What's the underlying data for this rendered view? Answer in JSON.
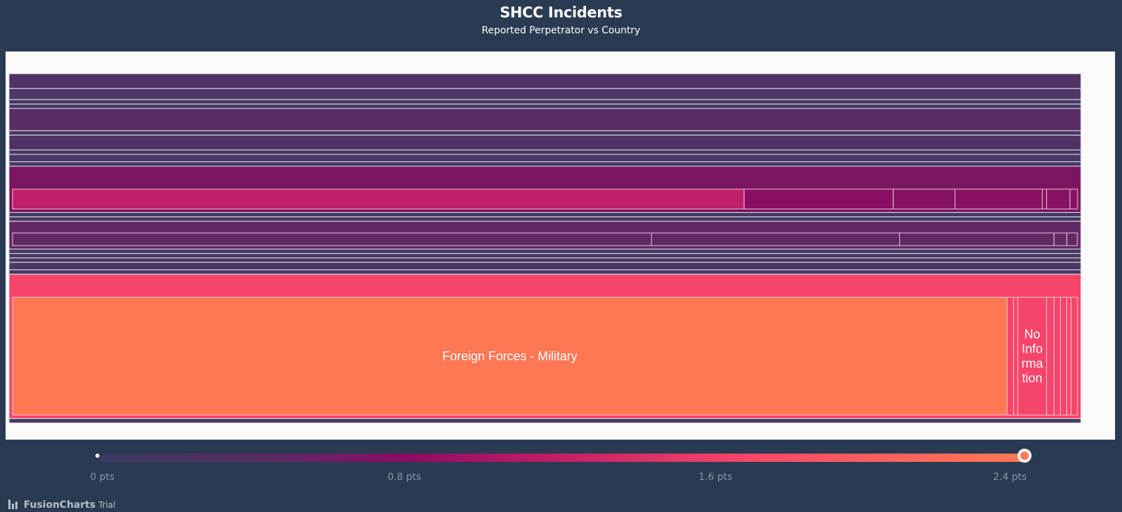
{
  "title": "SHCC Incidents",
  "subtitle": "Reported Perpetrator vs Country",
  "colors": {
    "background": "#2a3a52",
    "plot_background": "#fafafa",
    "gradient": [
      "#3c3b63",
      "#5d2a66",
      "#8a0b63",
      "#c41f65",
      "#f5476a",
      "#ff7a52"
    ]
  },
  "chart_data": {
    "type": "treemap",
    "value_unit": "pts",
    "color_range": [
      0,
      2.4
    ],
    "legend": {
      "ticks": [
        "0 pts",
        "0.8 pts",
        "1.6 pts",
        "2.4 pts"
      ],
      "placement": "bottom"
    },
    "groups": [
      {
        "share": 0.04,
        "color": "#513266",
        "children": []
      },
      {
        "share": 0.03,
        "color": "#4d3766",
        "children": []
      },
      {
        "share": 0.012,
        "color": "#463a63",
        "children": []
      },
      {
        "share": 0.012,
        "color": "#463a63",
        "children": []
      },
      {
        "share": 0.06,
        "color": "#5a2c66",
        "children": []
      },
      {
        "share": 0.012,
        "color": "#463a63",
        "children": []
      },
      {
        "share": 0.04,
        "color": "#513266",
        "children": []
      },
      {
        "share": 0.012,
        "color": "#463a63",
        "children": []
      },
      {
        "share": 0.02,
        "color": "#483864",
        "children": []
      },
      {
        "share": 0.012,
        "color": "#463a63",
        "children": []
      },
      {
        "share": 0.125,
        "color": "#7a1560",
        "children": [
          {
            "label": "",
            "share": 0.687,
            "color": "#bf1f66"
          },
          {
            "label": "",
            "share": 0.14,
            "color": "#8a0c63"
          },
          {
            "label": "",
            "share": 0.058,
            "color": "#861062"
          },
          {
            "label": "",
            "share": 0.082,
            "color": "#881061"
          },
          {
            "label": "",
            "share": 0.004,
            "color": "#861062"
          },
          {
            "label": "",
            "share": 0.022,
            "color": "#861062"
          },
          {
            "label": "",
            "share": 0.007,
            "color": "#861062"
          }
        ]
      },
      {
        "share": 0.012,
        "color": "#463a63",
        "children": []
      },
      {
        "share": 0.012,
        "color": "#463a63",
        "children": []
      },
      {
        "share": 0.075,
        "color": "#622866",
        "children": [
          {
            "label": "",
            "share": 0.6,
            "color": "#622866"
          },
          {
            "label": "",
            "share": 0.233,
            "color": "#622866"
          },
          {
            "label": "",
            "share": 0.145,
            "color": "#622866"
          },
          {
            "label": "",
            "share": 0.012,
            "color": "#622866"
          },
          {
            "label": "",
            "share": 0.01,
            "color": "#622866"
          }
        ]
      },
      {
        "share": 0.012,
        "color": "#463a63",
        "children": []
      },
      {
        "share": 0.012,
        "color": "#463a63",
        "children": []
      },
      {
        "share": 0.012,
        "color": "#463a63",
        "children": []
      },
      {
        "share": 0.02,
        "color": "#483864",
        "children": []
      },
      {
        "share": 0.012,
        "color": "#463a63",
        "children": []
      },
      {
        "share": 0.39,
        "color": "#f6446a",
        "children": [
          {
            "label": "Foreign Forces - Military",
            "share": 0.934,
            "color": "#ff7753"
          },
          {
            "label": "",
            "share": 0.006,
            "color": "#f6446a"
          },
          {
            "label": "",
            "share": 0.004,
            "color": "#f6446a"
          },
          {
            "label": "No Information",
            "label_lines": [
              "No",
              "Info",
              "rma",
              "tion"
            ],
            "share": 0.027,
            "color": "#f6446a"
          },
          {
            "label": "",
            "share": 0.007,
            "color": "#f6446a"
          },
          {
            "label": "",
            "share": 0.006,
            "color": "#f6446a"
          },
          {
            "label": "",
            "share": 0.006,
            "color": "#f6446a"
          },
          {
            "label": "",
            "share": 0.004,
            "color": "#f6446a"
          },
          {
            "label": "",
            "share": 0.006,
            "color": "#f6446a"
          }
        ]
      },
      {
        "share": 0.012,
        "color": "#463a63",
        "children": []
      }
    ]
  },
  "watermark": {
    "brand": "FusionCharts",
    "suffix": "Trial"
  }
}
